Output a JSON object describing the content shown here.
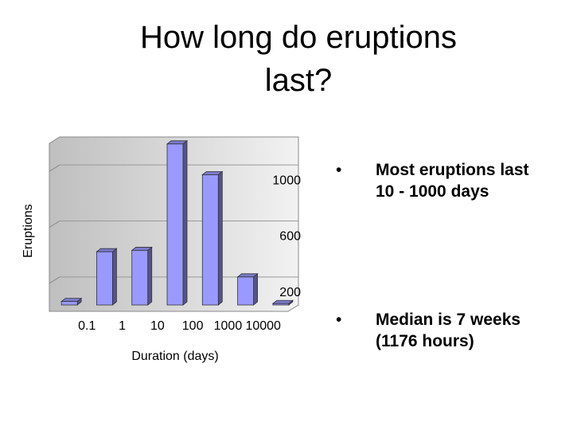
{
  "chart_data": {
    "type": "histogram",
    "title": "How long do eruptions last?",
    "bins": [
      null,
      0.1,
      1,
      10,
      100,
      1000,
      10000,
      null
    ],
    "values": [
      25,
      380,
      390,
      1150,
      930,
      200,
      10
    ],
    "color": "#9999ff",
    "xscale": "log",
    "xlabel": "Duration (days)",
    "ylabel": "Eruptions",
    "ylim": [
      0,
      1200
    ],
    "yticks": [
      200,
      600,
      1000
    ],
    "grid": true
  },
  "bullets": [
    "Most eruptions last 10 - 1000 days",
    "Median is 7 weeks (1176 hours)"
  ]
}
